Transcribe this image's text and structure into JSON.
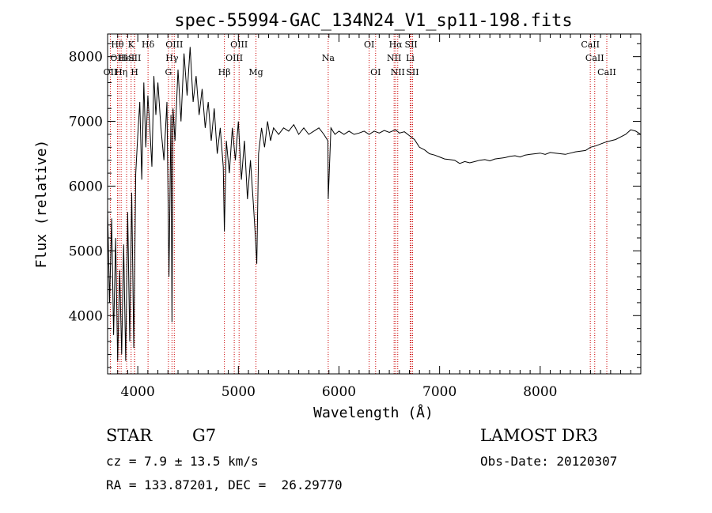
{
  "chart_data": {
    "type": "line",
    "title": "spec-55994-GAC_134N24_V1_sp11-198.fits",
    "xlabel": "Wavelength (Å)",
    "ylabel": "Flux (relative)",
    "xlim": [
      3700,
      9000
    ],
    "ylim": [
      3100,
      8350
    ],
    "xticks": [
      4000,
      5000,
      6000,
      7000,
      8000
    ],
    "yticks": [
      4000,
      5000,
      6000,
      7000,
      8000
    ],
    "series": [
      {
        "name": "flux",
        "x": [
          3700,
          3720,
          3740,
          3760,
          3780,
          3800,
          3820,
          3840,
          3860,
          3880,
          3900,
          3920,
          3940,
          3960,
          3980,
          4000,
          4020,
          4040,
          4060,
          4080,
          4100,
          4120,
          4140,
          4160,
          4180,
          4200,
          4230,
          4260,
          4290,
          4310,
          4330,
          4340,
          4350,
          4370,
          4400,
          4430,
          4460,
          4490,
          4520,
          4550,
          4580,
          4610,
          4640,
          4670,
          4700,
          4730,
          4760,
          4790,
          4820,
          4850,
          4861,
          4880,
          4910,
          4940,
          4970,
          5000,
          5030,
          5060,
          5090,
          5120,
          5150,
          5170,
          5183,
          5200,
          5230,
          5260,
          5290,
          5320,
          5350,
          5400,
          5450,
          5500,
          5550,
          5600,
          5650,
          5700,
          5750,
          5800,
          5850,
          5890,
          5893,
          5920,
          5960,
          6000,
          6050,
          6100,
          6150,
          6200,
          6250,
          6300,
          6350,
          6400,
          6450,
          6500,
          6563,
          6600,
          6650,
          6700,
          6750,
          6800,
          6850,
          6900,
          6950,
          7000,
          7050,
          7100,
          7150,
          7200,
          7250,
          7300,
          7350,
          7400,
          7450,
          7500,
          7550,
          7600,
          7650,
          7700,
          7750,
          7800,
          7850,
          7900,
          7950,
          8000,
          8050,
          8100,
          8150,
          8200,
          8250,
          8300,
          8350,
          8400,
          8450,
          8500,
          8550,
          8600,
          8650,
          8700,
          8750,
          8800,
          8850,
          8900,
          8950,
          9000
        ],
        "y": [
          5650,
          4200,
          5500,
          3700,
          5200,
          3300,
          4700,
          3400,
          5100,
          3300,
          5600,
          3600,
          5900,
          3500,
          6200,
          6800,
          7300,
          6100,
          7600,
          6600,
          7400,
          6900,
          6300,
          7700,
          7100,
          7600,
          6900,
          6400,
          7300,
          4600,
          7100,
          3900,
          7200,
          6700,
          7800,
          7000,
          8050,
          7400,
          8150,
          7300,
          7700,
          7100,
          7500,
          6900,
          7300,
          6700,
          7200,
          6500,
          6900,
          6300,
          5300,
          6700,
          6200,
          6900,
          6400,
          7000,
          6100,
          6700,
          5800,
          6400,
          5700,
          5200,
          4800,
          6500,
          6900,
          6600,
          7000,
          6700,
          6900,
          6800,
          6900,
          6850,
          6950,
          6800,
          6900,
          6800,
          6850,
          6900,
          6800,
          6700,
          5800,
          6900,
          6800,
          6850,
          6800,
          6850,
          6800,
          6820,
          6850,
          6800,
          6850,
          6820,
          6860,
          6830,
          6870,
          6820,
          6840,
          6780,
          6720,
          6600,
          6560,
          6500,
          6480,
          6450,
          6420,
          6410,
          6400,
          6350,
          6380,
          6360,
          6380,
          6400,
          6410,
          6390,
          6420,
          6430,
          6440,
          6460,
          6470,
          6450,
          6480,
          6490,
          6500,
          6510,
          6490,
          6520,
          6510,
          6500,
          6490,
          6510,
          6530,
          6540,
          6550,
          6600,
          6620,
          6650,
          6680,
          6700,
          6720,
          6760,
          6800,
          6870,
          6850,
          6800
        ]
      }
    ],
    "lines": [
      {
        "name": "Hθ",
        "wave": 3798,
        "row": 1
      },
      {
        "name": "OIII",
        "wave": 3813,
        "row": 2
      },
      {
        "name": "OII",
        "wave": 3727,
        "row": 3
      },
      {
        "name": "HeI",
        "wave": 3889,
        "row": 2
      },
      {
        "name": "Hη",
        "wave": 3835,
        "row": 3
      },
      {
        "name": "K",
        "wave": 3934,
        "row": 1
      },
      {
        "name": "SII",
        "wave": 3969,
        "row": 2
      },
      {
        "name": "H",
        "wave": 3968,
        "row": 3
      },
      {
        "name": "Hδ",
        "wave": 4102,
        "row": 1
      },
      {
        "name": "OIII",
        "wave": 4363,
        "row": 1
      },
      {
        "name": "Hγ",
        "wave": 4340,
        "row": 2
      },
      {
        "name": "G",
        "wave": 4305,
        "row": 3
      },
      {
        "name": "OIII",
        "wave": 5007,
        "row": 1
      },
      {
        "name": "OIII",
        "wave": 4959,
        "row": 2
      },
      {
        "name": "Hβ",
        "wave": 4861,
        "row": 3
      },
      {
        "name": "Mg",
        "wave": 5175,
        "row": 3
      },
      {
        "name": "Na",
        "wave": 5893,
        "row": 2
      },
      {
        "name": "OI",
        "wave": 6300,
        "row": 1
      },
      {
        "name": "OI",
        "wave": 6364,
        "row": 3
      },
      {
        "name": "Hα",
        "wave": 6563,
        "row": 1
      },
      {
        "name": "SII",
        "wave": 6717,
        "row": 1
      },
      {
        "name": "NII",
        "wave": 6548,
        "row": 2
      },
      {
        "name": "Li",
        "wave": 6708,
        "row": 2
      },
      {
        "name": "NII",
        "wave": 6584,
        "row": 3
      },
      {
        "name": "SII",
        "wave": 6731,
        "row": 3
      },
      {
        "name": "CaII",
        "wave": 8498,
        "row": 1
      },
      {
        "name": "CaII",
        "wave": 8542,
        "row": 2
      },
      {
        "name": "CaII",
        "wave": 8662,
        "row": 3
      }
    ]
  },
  "info": {
    "class": "STAR",
    "subclass": "G7",
    "survey": "LAMOST DR3",
    "cz": "cz = 7.9 ± 13.5 km/s",
    "obs_date": "Obs-Date: 20120307",
    "radec": "RA = 133.87201, DEC =  26.29770"
  },
  "colors": {
    "spectrum": "#000000",
    "line_marker": "#cc0000",
    "background": "#ffffff"
  }
}
